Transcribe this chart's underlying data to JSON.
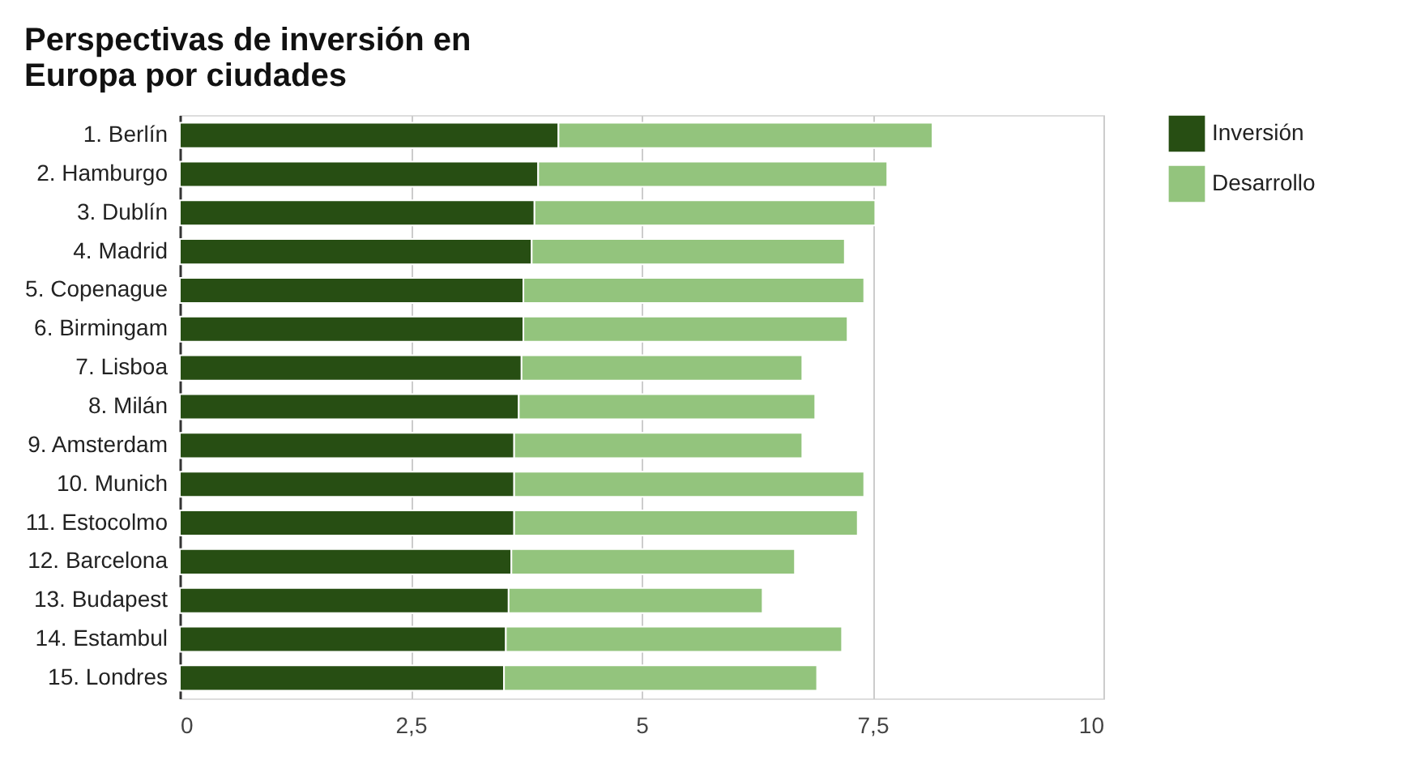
{
  "chart_data": {
    "type": "bar",
    "orientation": "horizontal",
    "stacked": true,
    "title": "Perspectivas de inversión en Europa por ciudades",
    "categories": [
      "1. Berlín",
      "2. Hamburgo",
      "3. Dublín",
      "4. Madrid",
      "5. Copenague",
      "6. Birmingam",
      "7. Lisboa",
      "8. Milán",
      "9. Amsterdam",
      "10. Munich",
      "11. Estocolmo",
      "12. Barcelona",
      "13. Budapest",
      "14. Estambul",
      "15. Londres"
    ],
    "series": [
      {
        "name": "Inversión",
        "color": "#274e13",
        "values": [
          4.1,
          3.88,
          3.84,
          3.81,
          3.72,
          3.72,
          3.7,
          3.67,
          3.62,
          3.62,
          3.62,
          3.59,
          3.56,
          3.53,
          3.51
        ]
      },
      {
        "name": "Desarrollo",
        "color": "#93c47d",
        "values": [
          4.05,
          3.78,
          3.69,
          3.39,
          3.69,
          3.51,
          3.04,
          3.21,
          3.12,
          3.79,
          3.72,
          3.07,
          2.75,
          3.64,
          3.39
        ]
      }
    ],
    "xlim": [
      0,
      10
    ],
    "xticks": [
      0,
      {
        "value": 2.5,
        "label": "2,5"
      },
      5,
      {
        "value": 7.5,
        "label": "7,5"
      },
      10
    ],
    "grid": "x",
    "legend": "top right"
  }
}
